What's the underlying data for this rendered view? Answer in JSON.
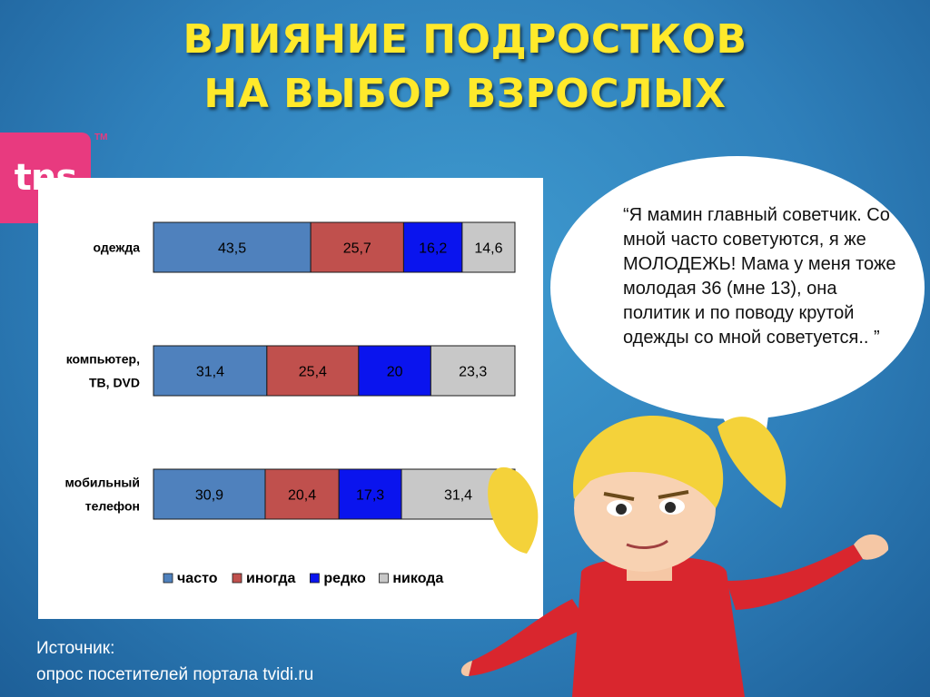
{
  "title_lines": [
    "ВЛИЯНИЕ ПОДРОСТКОВ",
    "НА ВЫБОР ВЗРОСЛЫХ"
  ],
  "logo": {
    "text": "tns",
    "tm": "TM"
  },
  "quote": "“Я мамин главный советчик. Со мной часто советуются, я же МОЛОДЕЖЬ! Мама у меня тоже молодая 36 (мне 13), она политик и по поводу крутой одежды со мной советуется.. ”",
  "source": {
    "line1": "Источник:",
    "line2": "опрос посетителей портала tvidi.ru"
  },
  "colors": {
    "часто": "#4f81bd",
    "иногда": "#c0504d",
    "редко": "#0a14ee",
    "никода": "#c8c8c8"
  },
  "chart_data": {
    "type": "bar",
    "orientation": "horizontal",
    "stacked": true,
    "categories": [
      [
        "одежда"
      ],
      [
        "компьютер,",
        "ТВ, DVD"
      ],
      [
        "мобильный",
        "телефон"
      ]
    ],
    "series": [
      {
        "name": "часто",
        "values": [
          43.5,
          31.4,
          30.9
        ],
        "labels": [
          "43,5",
          "31,4",
          "30,9"
        ]
      },
      {
        "name": "иногда",
        "values": [
          25.7,
          25.4,
          20.4
        ],
        "labels": [
          "25,7",
          "25,4",
          "20,4"
        ]
      },
      {
        "name": "редко",
        "values": [
          16.2,
          20,
          17.3
        ],
        "labels": [
          "16,2",
          "20",
          "17,3"
        ]
      },
      {
        "name": "никода",
        "values": [
          14.6,
          23.3,
          31.4
        ],
        "labels": [
          "14,6",
          "23,3",
          "31,4"
        ]
      }
    ],
    "legend_position": "bottom",
    "grid": false
  }
}
